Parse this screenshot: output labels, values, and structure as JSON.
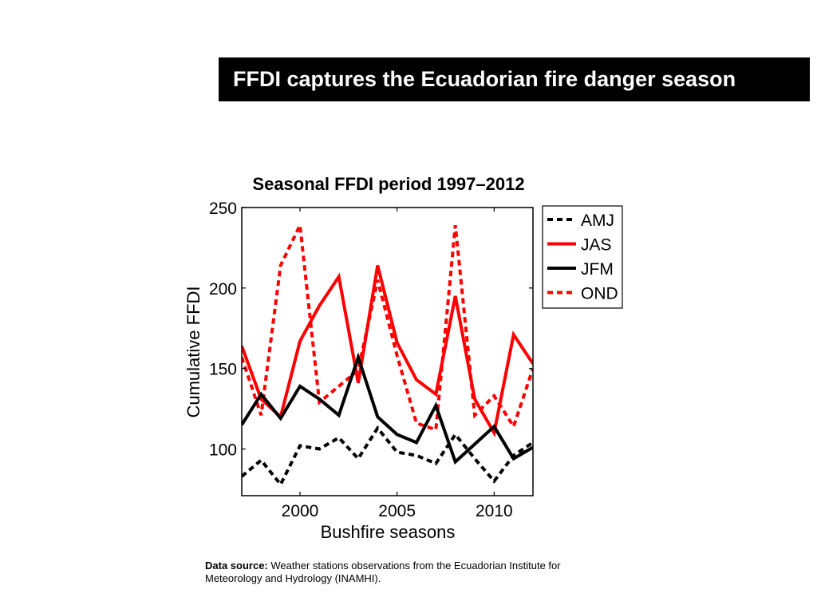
{
  "slide": {
    "title": "FFDI captures the Ecuadorian fire danger season",
    "source_label": "Data source:",
    "source_text": "Weather stations observations from the Ecuadorian Institute for Meteorology and Hydrology (INAMHI)."
  },
  "chart_data": {
    "type": "line",
    "title": "Seasonal FFDI period 1997–2012",
    "xlabel": "Bushfire seasons",
    "ylabel": "Cumulative FFDI",
    "xlim": [
      1997,
      2012
    ],
    "ylim": [
      71,
      250
    ],
    "xticks": [
      2000,
      2005,
      2010
    ],
    "yticks": [
      100,
      150,
      200,
      250
    ],
    "grid": false,
    "legend_position": "top-right",
    "x": [
      1997,
      1998,
      1999,
      2000,
      2001,
      2002,
      2003,
      2004,
      2005,
      2006,
      2007,
      2008,
      2009,
      2010,
      2011,
      2012
    ],
    "series": [
      {
        "name": "AMJ",
        "color": "#000000",
        "dash": "dotted",
        "values": [
          83,
          93,
          78,
          102,
          100,
          107,
          94,
          113,
          98,
          96,
          91,
          109,
          94,
          80,
          96,
          104
        ]
      },
      {
        "name": "JAS",
        "color": "#ff0000",
        "dash": "solid",
        "values": [
          164,
          131,
          120,
          167,
          189,
          207,
          141,
          214,
          166,
          143,
          134,
          195,
          131,
          110,
          171,
          153
        ]
      },
      {
        "name": "JFM",
        "color": "#000000",
        "dash": "solid",
        "values": [
          115,
          134,
          119,
          139,
          131,
          121,
          157,
          120,
          109,
          104,
          127,
          92,
          103,
          114,
          94,
          101
        ]
      },
      {
        "name": "OND",
        "color": "#ff0000",
        "dash": "dotted",
        "values": [
          157,
          121,
          214,
          239,
          129,
          139,
          149,
          205,
          158,
          116,
          112,
          239,
          121,
          133,
          114,
          150
        ]
      }
    ]
  }
}
